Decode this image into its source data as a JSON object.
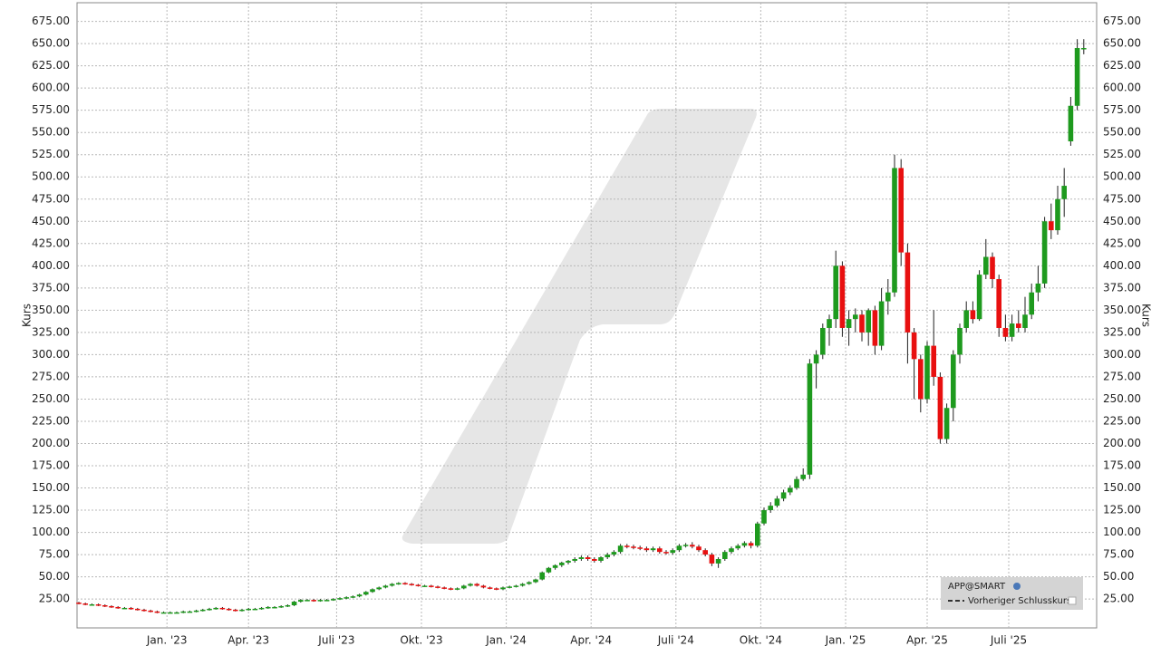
{
  "chart_data": {
    "type": "candlestick",
    "y_label": "Kurs",
    "up_color": "#1e9a1e",
    "down_color": "#e81010",
    "grid": true,
    "ylim": [
      -7.5,
      696
    ],
    "yticks": [
      {
        "value": 25,
        "label": "25.00"
      },
      {
        "value": 50,
        "label": "50.00"
      },
      {
        "value": 75,
        "label": "75.00"
      },
      {
        "value": 100,
        "label": "100.00"
      },
      {
        "value": 125,
        "label": "125.00"
      },
      {
        "value": 150,
        "label": "150.00"
      },
      {
        "value": 175,
        "label": "175.00"
      },
      {
        "value": 200,
        "label": "200.00"
      },
      {
        "value": 225,
        "label": "225.00"
      },
      {
        "value": 250,
        "label": "250.00"
      },
      {
        "value": 275,
        "label": "275.00"
      },
      {
        "value": 300,
        "label": "300.00"
      },
      {
        "value": 325,
        "label": "325.00"
      },
      {
        "value": 350,
        "label": "350.00"
      },
      {
        "value": 375,
        "label": "375.00"
      },
      {
        "value": 400,
        "label": "400.00"
      },
      {
        "value": 425,
        "label": "425.00"
      },
      {
        "value": 450,
        "label": "450.00"
      },
      {
        "value": 475,
        "label": "475.00"
      },
      {
        "value": 500,
        "label": "500.00"
      },
      {
        "value": 525,
        "label": "525.00"
      },
      {
        "value": 550,
        "label": "550.00"
      },
      {
        "value": 575,
        "label": "575.00"
      },
      {
        "value": 600,
        "label": "600.00"
      },
      {
        "value": 625,
        "label": "625.00"
      },
      {
        "value": 650,
        "label": "650.00"
      },
      {
        "value": 675,
        "label": "675.00"
      }
    ],
    "xticks": [
      {
        "value": 13.5,
        "label": "Jan. '23"
      },
      {
        "value": 26,
        "label": "Apr. '23"
      },
      {
        "value": 39.5,
        "label": "Juli '23"
      },
      {
        "value": 52.5,
        "label": "Okt. '23"
      },
      {
        "value": 65.5,
        "label": "Jan. '24"
      },
      {
        "value": 78.5,
        "label": "Apr. '24"
      },
      {
        "value": 91.5,
        "label": "Juli '24"
      },
      {
        "value": 104.5,
        "label": "Okt. '24"
      },
      {
        "value": 117.5,
        "label": "Jan. '25"
      },
      {
        "value": 130,
        "label": "Apr. '25"
      },
      {
        "value": 142.5,
        "label": "Juli '25"
      }
    ],
    "legend": {
      "symbol": "APP@SMART",
      "previous_close": "Vorheriger Schlusskurs"
    },
    "open": [
      21,
      20,
      19,
      19,
      18,
      17,
      16,
      15,
      15,
      14,
      13,
      12,
      11,
      10,
      10,
      10,
      10,
      11,
      11,
      12,
      13,
      14,
      15,
      14,
      13,
      12,
      13,
      14,
      14,
      15,
      16,
      16,
      17,
      18,
      22,
      24,
      24,
      23,
      24,
      24,
      25,
      26,
      27,
      28,
      30,
      33,
      36,
      38,
      40,
      42,
      43,
      42,
      41,
      40,
      40,
      39,
      38,
      37,
      36,
      37,
      40,
      42,
      40,
      38,
      37,
      36,
      38,
      39,
      40,
      42,
      44,
      47,
      55,
      60,
      63,
      66,
      68,
      70,
      72,
      70,
      68,
      72,
      75,
      78,
      85,
      84,
      83,
      82,
      80,
      82,
      78,
      77,
      80,
      85,
      86,
      84,
      80,
      75,
      65,
      70,
      78,
      82,
      85,
      88,
      85,
      110,
      125,
      130,
      138,
      145,
      150,
      160,
      165,
      290,
      300,
      330,
      340,
      400,
      330,
      340,
      345,
      325,
      350,
      310,
      360,
      370,
      510,
      415,
      325,
      295,
      250,
      310,
      275,
      205,
      240,
      300,
      330,
      350,
      340,
      390,
      410,
      385,
      330,
      320,
      335,
      330,
      345,
      370,
      380,
      450,
      440,
      475,
      540,
      580,
      645
    ],
    "high": [
      22,
      21,
      20,
      20,
      19,
      18,
      17,
      16,
      16,
      15,
      14,
      13,
      12,
      11,
      11,
      11,
      12,
      12,
      13,
      14,
      15,
      16,
      16,
      15,
      14,
      14,
      15,
      15,
      16,
      17,
      17,
      18,
      19,
      23,
      25,
      25,
      25,
      25,
      25,
      26,
      27,
      28,
      29,
      31,
      34,
      37,
      39,
      41,
      43,
      44,
      44,
      43,
      42,
      41,
      41,
      40,
      39,
      38,
      38,
      41,
      43,
      43,
      41,
      39,
      38,
      39,
      40,
      41,
      43,
      45,
      48,
      56,
      61,
      64,
      67,
      69,
      72,
      74,
      74,
      72,
      73,
      77,
      80,
      87,
      87,
      86,
      85,
      84,
      84,
      84,
      80,
      82,
      87,
      88,
      89,
      86,
      82,
      77,
      72,
      80,
      84,
      87,
      90,
      90,
      112,
      128,
      134,
      141,
      148,
      153,
      163,
      172,
      295,
      305,
      335,
      345,
      417,
      405,
      350,
      352,
      350,
      352,
      355,
      375,
      385,
      525,
      520,
      425,
      330,
      300,
      315,
      350,
      280,
      245,
      305,
      335,
      360,
      360,
      395,
      430,
      415,
      390,
      345,
      345,
      350,
      365,
      380,
      400,
      455,
      470,
      490,
      510,
      590,
      655,
      655
    ],
    "low": [
      19,
      18,
      18,
      17,
      16,
      15,
      14,
      14,
      13,
      12,
      11,
      10,
      9,
      9,
      9,
      9,
      9,
      10,
      10,
      11,
      12,
      13,
      13,
      12,
      11,
      11,
      12,
      13,
      13,
      14,
      15,
      15,
      16,
      17,
      21,
      23,
      22,
      22,
      23,
      23,
      24,
      25,
      26,
      27,
      29,
      32,
      35,
      37,
      39,
      41,
      41,
      40,
      39,
      39,
      38,
      37,
      36,
      35,
      35,
      36,
      39,
      39,
      37,
      36,
      35,
      35,
      37,
      38,
      39,
      41,
      43,
      46,
      54,
      58,
      61,
      64,
      66,
      68,
      68,
      66,
      66,
      70,
      73,
      76,
      82,
      81,
      80,
      78,
      78,
      76,
      75,
      75,
      78,
      83,
      82,
      78,
      73,
      62,
      60,
      68,
      76,
      80,
      83,
      82,
      83,
      108,
      122,
      128,
      135,
      142,
      148,
      158,
      160,
      262,
      295,
      310,
      330,
      320,
      310,
      325,
      315,
      310,
      300,
      305,
      345,
      365,
      400,
      290,
      250,
      235,
      245,
      265,
      200,
      200,
      225,
      290,
      325,
      335,
      338,
      385,
      375,
      320,
      315,
      315,
      325,
      325,
      340,
      360,
      375,
      430,
      435,
      455,
      535,
      575,
      638
    ],
    "close": [
      20,
      19,
      19,
      18,
      17,
      16,
      15,
      15,
      14,
      13,
      12,
      11,
      10,
      10,
      10,
      10,
      11,
      11,
      12,
      13,
      14,
      15,
      14,
      13,
      12,
      13,
      14,
      14,
      15,
      16,
      16,
      17,
      18,
      22,
      24,
      24,
      23,
      24,
      24,
      25,
      26,
      27,
      28,
      30,
      33,
      36,
      38,
      40,
      42,
      43,
      42,
      41,
      40,
      40,
      39,
      38,
      37,
      36,
      37,
      40,
      42,
      40,
      38,
      37,
      36,
      38,
      39,
      40,
      42,
      44,
      47,
      55,
      60,
      63,
      66,
      68,
      70,
      72,
      70,
      68,
      72,
      75,
      78,
      85,
      84,
      83,
      82,
      80,
      82,
      78,
      77,
      80,
      85,
      86,
      84,
      80,
      75,
      65,
      70,
      78,
      82,
      85,
      88,
      85,
      110,
      125,
      130,
      138,
      145,
      150,
      160,
      165,
      290,
      300,
      330,
      340,
      400,
      330,
      340,
      345,
      325,
      350,
      310,
      360,
      370,
      510,
      415,
      325,
      295,
      250,
      310,
      275,
      205,
      240,
      300,
      330,
      350,
      340,
      390,
      410,
      385,
      330,
      320,
      335,
      330,
      345,
      370,
      380,
      450,
      440,
      475,
      490,
      580,
      645,
      645
    ]
  }
}
